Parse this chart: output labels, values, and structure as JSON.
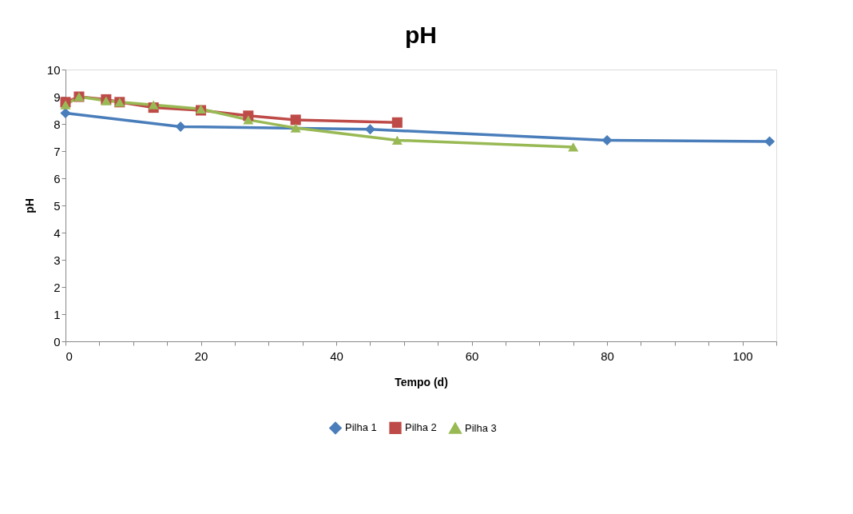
{
  "chart_data": {
    "type": "line",
    "title": "pH",
    "xlabel": "Tempo  (d)",
    "ylabel": "pH",
    "xlim": [
      0,
      105
    ],
    "xticks": [
      0,
      {
        "value": 5,
        "label": null
      },
      {
        "value": 10,
        "label": null
      },
      {
        "value": 15,
        "label": null
      },
      20,
      {
        "value": 25,
        "label": null
      },
      {
        "value": 30,
        "label": null
      },
      {
        "value": 35,
        "label": null
      },
      40,
      {
        "value": 45,
        "label": null
      },
      {
        "value": 50,
        "label": null
      },
      {
        "value": 55,
        "label": null
      },
      60,
      {
        "value": 65,
        "label": null
      },
      {
        "value": 70,
        "label": null
      },
      {
        "value": 75,
        "label": null
      },
      80,
      {
        "value": 85,
        "label": null
      },
      {
        "value": 90,
        "label": null
      },
      {
        "value": 95,
        "label": null
      },
      100,
      {
        "value": 105,
        "label": null
      }
    ],
    "ylim": [
      0,
      10
    ],
    "yticks": [
      0,
      1,
      2,
      3,
      4,
      5,
      6,
      7,
      8,
      9,
      10
    ],
    "grid": false,
    "legend": "bottom",
    "series": [
      {
        "name": "Pilha 1",
        "color": "#4a7ebb",
        "marker": "diamond",
        "x": [
          0,
          17,
          45,
          80,
          104
        ],
        "values": [
          8.4,
          7.9,
          7.8,
          7.4,
          7.35
        ]
      },
      {
        "name": "Pilha 2",
        "color": "#be4b48",
        "marker": "square",
        "x": [
          0,
          2,
          6,
          8,
          13,
          20,
          27,
          34,
          49
        ],
        "values": [
          8.8,
          9.0,
          8.9,
          8.8,
          8.6,
          8.5,
          8.3,
          8.15,
          8.05
        ]
      },
      {
        "name": "Pilha 3",
        "color": "#98b954",
        "marker": "triangle",
        "x": [
          0,
          2,
          6,
          8,
          13,
          20,
          27,
          34,
          49,
          75
        ],
        "values": [
          8.7,
          9.0,
          8.85,
          8.8,
          8.7,
          8.55,
          8.15,
          7.85,
          7.4,
          7.15
        ]
      }
    ]
  }
}
